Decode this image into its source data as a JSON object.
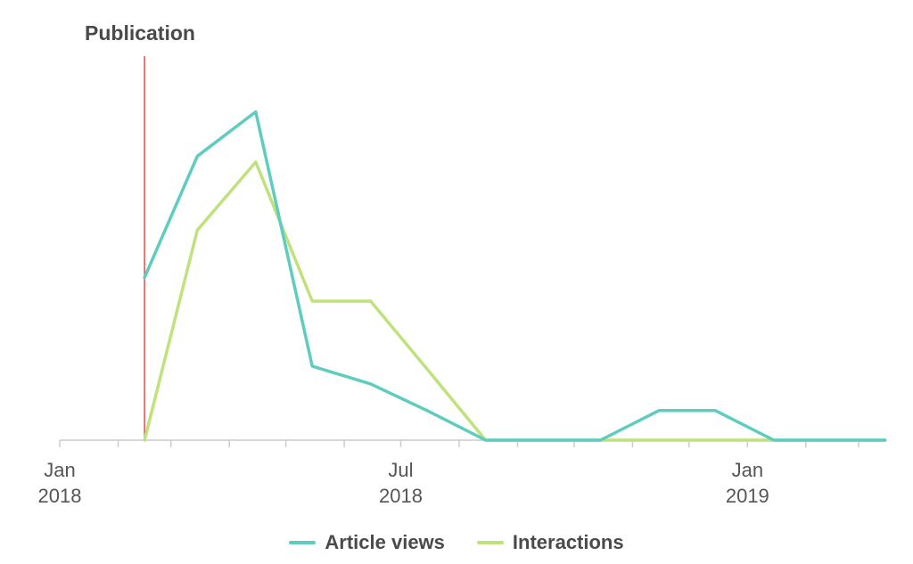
{
  "chart_data": {
    "type": "line",
    "x_domain": [
      "2018-01-01",
      "2019-03-01"
    ],
    "y_range": [
      0,
      100
    ],
    "x_ticks": [
      {
        "date": "2018-01-01",
        "labels": [
          "Jan",
          "2018"
        ]
      },
      {
        "date": "2018-07-01",
        "labels": [
          "Jul",
          "2018"
        ]
      },
      {
        "date": "2019-01-01",
        "labels": [
          "Jan",
          "2019"
        ]
      }
    ],
    "minor_ticks": [
      "2018-02-01",
      "2018-03-01",
      "2018-04-01",
      "2018-05-01",
      "2018-06-01",
      "2018-08-01",
      "2018-09-01",
      "2018-10-01",
      "2018-11-01",
      "2018-12-01",
      "2019-02-01",
      "2019-03-01"
    ],
    "marker": {
      "date": "2018-02-15",
      "label": "Publication",
      "color": "#d9534f"
    },
    "series": [
      {
        "name": "Article views",
        "color": "#5ecdbf",
        "points": [
          [
            "2018-02-15",
            55
          ],
          [
            "2018-03-15",
            96
          ],
          [
            "2018-04-15",
            111
          ],
          [
            "2018-05-15",
            25
          ],
          [
            "2018-06-15",
            19
          ],
          [
            "2018-07-15",
            10
          ],
          [
            "2018-08-15",
            0
          ],
          [
            "2018-09-15",
            0
          ],
          [
            "2018-10-15",
            0
          ],
          [
            "2018-11-15",
            10
          ],
          [
            "2018-12-15",
            10
          ],
          [
            "2019-01-15",
            0
          ],
          [
            "2019-02-15",
            0
          ],
          [
            "2019-03-15",
            0
          ]
        ]
      },
      {
        "name": "Interactions",
        "color": "#bfe27c",
        "points": [
          [
            "2018-02-15",
            0
          ],
          [
            "2018-03-15",
            71
          ],
          [
            "2018-04-15",
            94
          ],
          [
            "2018-05-15",
            47
          ],
          [
            "2018-06-15",
            47
          ],
          [
            "2018-07-15",
            24
          ],
          [
            "2018-08-15",
            0
          ],
          [
            "2018-09-15",
            0
          ],
          [
            "2018-10-15",
            0
          ],
          [
            "2018-11-15",
            0
          ],
          [
            "2018-12-15",
            0
          ],
          [
            "2019-01-15",
            0
          ],
          [
            "2019-02-15",
            0
          ],
          [
            "2019-03-15",
            0
          ]
        ]
      }
    ]
  }
}
